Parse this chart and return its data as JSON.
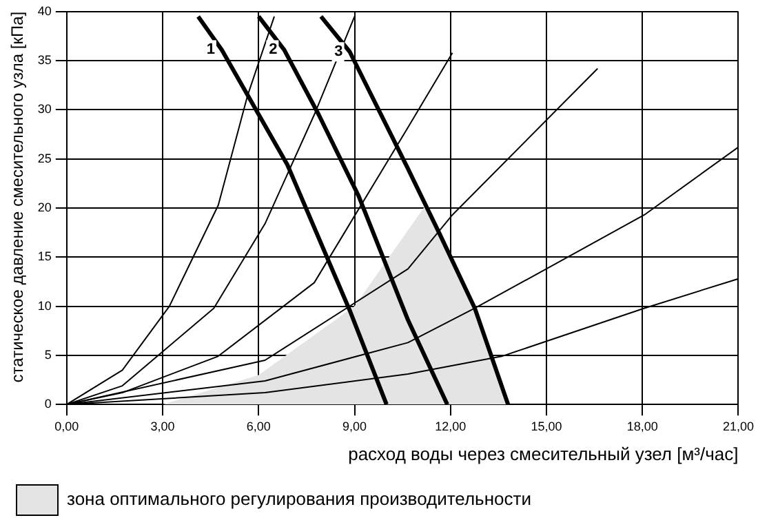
{
  "chart_data": {
    "type": "line",
    "xlabel": "расход воды через смесительный узел [м³/час]",
    "ylabel": "статическое давление смесительного узла [кПа]",
    "xlim": [
      0,
      21
    ],
    "ylim": [
      0,
      40
    ],
    "xticks": [
      {
        "value": 0,
        "label": "0,00"
      },
      {
        "value": 3,
        "label": "3,00"
      },
      {
        "value": 6,
        "label": "6,00"
      },
      {
        "value": 9,
        "label": "9,00"
      },
      {
        "value": 12,
        "label": "12,00"
      },
      {
        "value": 15,
        "label": "15,00"
      },
      {
        "value": 18,
        "label": "18,00"
      },
      {
        "value": 21,
        "label": "21,00"
      }
    ],
    "yticks": [
      0,
      5,
      10,
      15,
      20,
      25,
      30,
      35,
      40
    ],
    "grid": true,
    "legend": "bottom left",
    "marker": "none",
    "line_style": "solid",
    "series": [
      {
        "name": "зона оптимального регулирования производительности",
        "type": "area",
        "color": "#e4e4e4",
        "x": [
          3,
          6,
          9,
          11.2,
          12.76,
          13.8
        ],
        "values": [
          0,
          3,
          10,
          20.2,
          9.8,
          0
        ]
      },
      {
        "color": "#000000",
        "x": [
          0,
          1.74,
          3.21,
          4.74,
          5.65,
          6.49
        ],
        "values": [
          0,
          3.5,
          10,
          20.3,
          31.4,
          39.5
        ]
      },
      {
        "color": "#000000",
        "x": [
          0,
          1.74,
          4.6,
          6.2,
          7.74,
          9
        ],
        "values": [
          0,
          1.9,
          9.8,
          18.4,
          29.5,
          39.5
        ]
      },
      {
        "color": "#000000",
        "x": [
          0,
          1.74,
          4.73,
          7.74,
          10.67,
          12.06
        ],
        "values": [
          0,
          1.2,
          4.9,
          12.4,
          28.2,
          35.8
        ]
      },
      {
        "color": "#000000",
        "x": [
          0,
          6.2,
          10.67,
          12.06,
          16.6
        ],
        "values": [
          0,
          4.5,
          13.8,
          19.3,
          34.2
        ]
      },
      {
        "color": "#000000",
        "x": [
          0,
          6.2,
          10.67,
          12.76,
          18.06,
          21
        ],
        "values": [
          0,
          2.4,
          6.3,
          9.8,
          19.3,
          26.2
        ]
      },
      {
        "color": "#000000",
        "x": [
          0,
          6.2,
          10.67,
          13.6,
          18.06,
          21
        ],
        "values": [
          0,
          1.2,
          3.1,
          4.9,
          9.8,
          12.8
        ]
      },
      {
        "name": "1",
        "color": "#000000",
        "x": [
          4.11,
          4.85,
          6.9,
          8.86,
          10
        ],
        "values": [
          39.5,
          36.1,
          24.4,
          9.5,
          0
        ]
      },
      {
        "name": "2",
        "color": "#000000",
        "x": [
          6,
          6.8,
          7.88,
          9.13,
          10.67,
          11.9
        ],
        "values": [
          39.5,
          36.1,
          29.5,
          21.2,
          8.6,
          0
        ]
      },
      {
        "name": "3",
        "color": "#000000",
        "x": [
          7.95,
          8.85,
          10.67,
          11.64,
          12.76,
          13.8
        ],
        "values": [
          39.5,
          35.9,
          24,
          17.5,
          9.8,
          0
        ]
      }
    ]
  }
}
